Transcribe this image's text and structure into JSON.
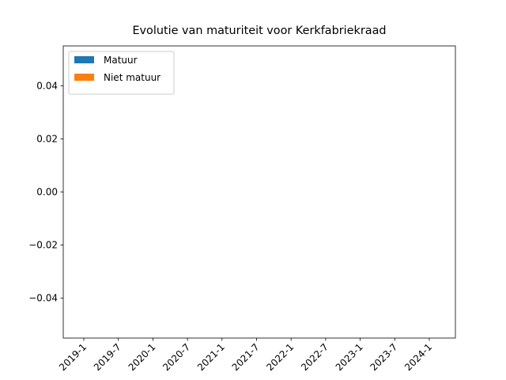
{
  "chart_data": {
    "type": "bar",
    "stacked": true,
    "title": "Evolutie van maturiteit voor Kerkfabriekraad",
    "categories": [
      "2019-1",
      "2019-7",
      "2020-1",
      "2020-7",
      "2021-1",
      "2021-7",
      "2022-1",
      "2022-7",
      "2023-1",
      "2023-7",
      "2024-1"
    ],
    "series": [
      {
        "name": "Matuur",
        "color": "#1f77b4",
        "values": [
          0,
          0,
          0,
          0,
          0,
          0,
          0,
          0,
          0,
          0,
          0
        ]
      },
      {
        "name": "Niet matuur",
        "color": "#ff7f0e",
        "values": [
          0,
          0,
          0,
          0,
          0,
          0,
          0,
          0,
          0,
          0,
          0
        ]
      }
    ],
    "ylim": [
      -0.055,
      0.055
    ],
    "yticks": [
      {
        "value": -0.04,
        "label": "−0.04"
      },
      {
        "value": -0.02,
        "label": "−0.02"
      },
      {
        "value": 0,
        "label": "0.00"
      },
      0.02,
      0.04
    ],
    "legend": "upper left",
    "grid": false
  }
}
